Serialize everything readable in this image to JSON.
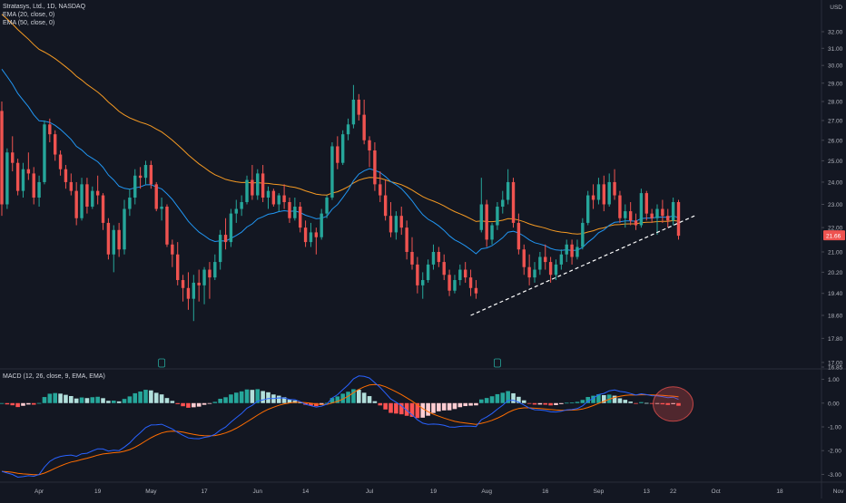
{
  "legend": {
    "symbol": "Stratasys, Ltd., 1D, NASDAQ",
    "ema20": "EMA (20, close, 0)",
    "ema50": "EMA (50, close, 0)",
    "macd": "MACD (12, 26, close, 9, EMA, EMA)"
  },
  "currency": "USD",
  "colors": {
    "background": "#131722",
    "up": "#26a69a",
    "down": "#ef5350",
    "ema20": "#2196f3",
    "ema50": "#f59a23",
    "macd_line": "#2962ff",
    "signal_line": "#ff6d00",
    "hist_up_strong": "#26a69a",
    "hist_up_weak": "#b2dfdb",
    "hist_down_strong": "#ff5252",
    "hist_down_weak": "#ffcdd2",
    "price_tag": "#ef5350"
  },
  "chart_data": [
    {
      "type": "candlestick",
      "title": "Stratasys, Ltd., 1D, NASDAQ",
      "x_ticks": [
        "Apr",
        "19",
        "May",
        "17",
        "Jun",
        "14",
        "Jul",
        "19",
        "Aug",
        "16",
        "Sep",
        "13",
        "22",
        "Oct",
        "18",
        "Nov"
      ],
      "y_ticks": [
        "34.00",
        "32.00",
        "31.00",
        "30.00",
        "29.00",
        "28.00",
        "27.00",
        "26.00",
        "25.00",
        "24.00",
        "23.00",
        "22.00",
        "21.00",
        "20.20",
        "19.40",
        "18.60",
        "17.80",
        "17.00",
        "16.85"
      ],
      "ylim": [
        16.85,
        34.0
      ],
      "y_scale": "log",
      "last_price": "21.66",
      "last_close": 21.66,
      "series": [
        {
          "name": "Stratasys, Ltd.",
          "ohlc": [
            [
              27.5,
              28.0,
              22.5,
              23.0
            ],
            [
              23.0,
              25.6,
              22.8,
              25.4
            ],
            [
              25.4,
              26.2,
              24.5,
              24.9
            ],
            [
              24.9,
              25.1,
              23.4,
              23.6
            ],
            [
              23.6,
              24.9,
              23.3,
              24.6
            ],
            [
              24.6,
              25.4,
              24.1,
              24.4
            ],
            [
              24.4,
              24.7,
              23.0,
              23.3
            ],
            [
              23.3,
              24.3,
              22.9,
              24.0
            ],
            [
              24.0,
              27.0,
              23.9,
              26.8
            ],
            [
              26.8,
              27.1,
              25.9,
              26.3
            ],
            [
              26.3,
              26.5,
              25.0,
              25.3
            ],
            [
              25.3,
              25.5,
              24.3,
              24.6
            ],
            [
              24.6,
              24.8,
              23.7,
              24.0
            ],
            [
              24.0,
              24.4,
              23.4,
              23.6
            ],
            [
              23.6,
              24.0,
              22.1,
              22.4
            ],
            [
              22.4,
              24.2,
              22.3,
              23.9
            ],
            [
              23.9,
              24.2,
              22.6,
              22.9
            ],
            [
              22.9,
              23.8,
              22.8,
              23.6
            ],
            [
              23.6,
              24.3,
              23.0,
              23.4
            ],
            [
              23.4,
              23.5,
              21.9,
              22.2
            ],
            [
              22.2,
              22.4,
              20.7,
              20.9
            ],
            [
              20.9,
              22.1,
              20.2,
              21.9
            ],
            [
              21.9,
              22.2,
              20.8,
              21.1
            ],
            [
              21.1,
              23.2,
              20.9,
              22.8
            ],
            [
              22.8,
              23.7,
              22.5,
              23.3
            ],
            [
              23.3,
              24.6,
              23.0,
              24.3
            ],
            [
              24.3,
              24.7,
              23.7,
              24.2
            ],
            [
              24.2,
              25.0,
              23.9,
              24.8
            ],
            [
              24.8,
              25.0,
              23.7,
              23.9
            ],
            [
              23.9,
              24.0,
              22.7,
              22.8
            ],
            [
              22.8,
              23.3,
              22.3,
              22.9
            ],
            [
              22.9,
              23.0,
              21.2,
              21.3
            ],
            [
              21.3,
              21.5,
              20.4,
              20.9
            ],
            [
              20.9,
              21.4,
              19.7,
              19.9
            ],
            [
              19.9,
              20.1,
              19.1,
              19.6
            ],
            [
              19.6,
              20.2,
              18.8,
              19.2
            ],
            [
              19.2,
              20.1,
              18.4,
              19.8
            ],
            [
              19.8,
              20.3,
              19.1,
              19.7
            ],
            [
              19.7,
              20.4,
              19.0,
              20.3
            ],
            [
              20.3,
              20.6,
              19.2,
              20.0
            ],
            [
              20.0,
              20.9,
              19.9,
              20.6
            ],
            [
              20.6,
              21.9,
              20.3,
              21.7
            ],
            [
              21.7,
              22.4,
              21.1,
              21.4
            ],
            [
              21.4,
              22.8,
              21.2,
              22.6
            ],
            [
              22.6,
              23.2,
              22.2,
              22.8
            ],
            [
              22.8,
              23.4,
              22.5,
              23.1
            ],
            [
              23.1,
              24.3,
              23.0,
              24.1
            ],
            [
              24.1,
              24.8,
              23.2,
              23.4
            ],
            [
              23.4,
              24.6,
              23.2,
              24.4
            ],
            [
              24.4,
              24.8,
              23.1,
              23.3
            ],
            [
              23.3,
              23.8,
              22.8,
              23.6
            ],
            [
              23.6,
              23.7,
              22.9,
              23.0
            ],
            [
              23.0,
              23.5,
              22.7,
              23.4
            ],
            [
              23.4,
              23.9,
              22.8,
              23.1
            ],
            [
              23.1,
              23.3,
              22.2,
              22.4
            ],
            [
              22.4,
              23.3,
              22.3,
              22.9
            ],
            [
              22.9,
              23.1,
              21.8,
              22.0
            ],
            [
              22.0,
              22.3,
              21.2,
              21.4
            ],
            [
              21.4,
              22.2,
              21.2,
              21.8
            ],
            [
              21.8,
              22.0,
              20.9,
              21.6
            ],
            [
              21.6,
              22.8,
              21.5,
              22.6
            ],
            [
              22.6,
              23.4,
              22.4,
              23.3
            ],
            [
              23.3,
              25.9,
              23.2,
              25.7
            ],
            [
              25.7,
              26.2,
              24.6,
              24.9
            ],
            [
              24.9,
              26.5,
              24.8,
              26.3
            ],
            [
              26.3,
              27.1,
              26.0,
              26.8
            ],
            [
              26.8,
              28.9,
              26.6,
              28.1
            ],
            [
              28.1,
              28.4,
              27.0,
              27.3
            ],
            [
              27.3,
              28.1,
              25.8,
              26.0
            ],
            [
              26.0,
              26.2,
              24.7,
              25.5
            ],
            [
              25.5,
              25.9,
              23.6,
              23.9
            ],
            [
              23.9,
              24.5,
              23.1,
              23.4
            ],
            [
              23.4,
              24.1,
              22.3,
              22.5
            ],
            [
              22.5,
              23.1,
              21.6,
              21.8
            ],
            [
              21.8,
              22.7,
              21.5,
              22.5
            ],
            [
              22.5,
              22.9,
              21.7,
              22.0
            ],
            [
              22.0,
              22.3,
              20.7,
              21.0
            ],
            [
              21.0,
              21.6,
              20.3,
              20.5
            ],
            [
              20.5,
              20.8,
              19.4,
              19.7
            ],
            [
              19.7,
              20.2,
              19.2,
              19.9
            ],
            [
              19.9,
              20.7,
              19.8,
              20.5
            ],
            [
              20.5,
              21.3,
              20.3,
              21.0
            ],
            [
              21.0,
              21.2,
              20.4,
              20.6
            ],
            [
              20.6,
              20.9,
              19.9,
              20.1
            ],
            [
              20.1,
              20.3,
              19.3,
              19.5
            ],
            [
              19.5,
              20.1,
              19.4,
              19.9
            ],
            [
              19.9,
              20.5,
              19.7,
              20.3
            ],
            [
              20.3,
              20.6,
              19.8,
              20.0
            ],
            [
              20.0,
              20.3,
              19.3,
              19.6
            ],
            [
              19.6,
              19.9,
              19.2,
              19.4
            ],
            [
              21.9,
              24.2,
              21.8,
              23.0
            ],
            [
              23.0,
              23.2,
              21.2,
              21.5
            ],
            [
              21.5,
              22.2,
              21.3,
              22.1
            ],
            [
              22.1,
              23.1,
              21.9,
              22.9
            ],
            [
              22.9,
              23.6,
              22.6,
              23.2
            ],
            [
              23.2,
              24.6,
              23.0,
              24.0
            ],
            [
              24.0,
              24.2,
              22.0,
              22.2
            ],
            [
              22.2,
              22.6,
              20.9,
              21.1
            ],
            [
              21.1,
              21.3,
              20.1,
              20.4
            ],
            [
              20.4,
              20.9,
              19.7,
              20.0
            ],
            [
              20.0,
              20.6,
              19.8,
              20.3
            ],
            [
              20.3,
              21.0,
              20.1,
              20.8
            ],
            [
              20.8,
              21.3,
              20.3,
              20.6
            ],
            [
              20.6,
              20.8,
              19.8,
              20.1
            ],
            [
              20.1,
              20.7,
              19.9,
              20.5
            ],
            [
              20.5,
              21.1,
              20.3,
              20.9
            ],
            [
              20.9,
              21.5,
              20.6,
              21.3
            ],
            [
              21.3,
              21.5,
              20.5,
              20.8
            ],
            [
              20.8,
              21.5,
              20.7,
              21.2
            ],
            [
              21.2,
              22.4,
              21.1,
              22.2
            ],
            [
              22.2,
              23.6,
              22.1,
              23.4
            ],
            [
              23.4,
              23.9,
              22.8,
              23.2
            ],
            [
              23.2,
              24.2,
              23.0,
              23.9
            ],
            [
              23.9,
              24.3,
              22.7,
              23.0
            ],
            [
              23.0,
              24.4,
              22.9,
              24.0
            ],
            [
              24.0,
              24.6,
              23.2,
              23.4
            ],
            [
              23.4,
              23.6,
              22.2,
              22.4
            ],
            [
              22.4,
              23.0,
              22.0,
              22.7
            ],
            [
              22.7,
              23.1,
              22.1,
              22.3
            ],
            [
              22.3,
              22.6,
              21.9,
              22.1
            ],
            [
              22.1,
              23.7,
              22.0,
              23.5
            ],
            [
              23.5,
              23.6,
              22.3,
              22.6
            ],
            [
              22.6,
              22.8,
              22.2,
              22.4
            ],
            [
              22.4,
              23.0,
              21.7,
              22.8
            ],
            [
              22.8,
              23.2,
              22.2,
              22.5
            ],
            [
              22.5,
              22.8,
              22.0,
              22.3
            ],
            [
              22.3,
              23.3,
              22.1,
              23.1
            ],
            [
              23.1,
              23.2,
              21.5,
              21.66
            ]
          ]
        },
        {
          "name": "EMA (20, close, 0)"
        },
        {
          "name": "EMA (50, close, 0)"
        }
      ],
      "trendline": {
        "from": [
          88,
          18.6
        ],
        "to": [
          130,
          22.5
        ],
        "style": "dashed"
      }
    },
    {
      "type": "macd",
      "title": "MACD (12, 26, close, 9, EMA, EMA)",
      "y_ticks": [
        "1.00",
        "0.00",
        "-1.00",
        "-2.00",
        "-3.00"
      ],
      "ylim": [
        -3.25,
        1.25
      ]
    }
  ]
}
